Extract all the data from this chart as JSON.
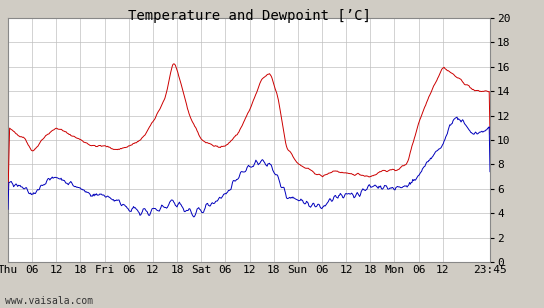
{
  "title": "Temperature and Dewpoint [’C]",
  "watermark": "www.vaisala.com",
  "ylim": [
    0,
    20
  ],
  "yticks": [
    0,
    2,
    4,
    6,
    8,
    10,
    12,
    14,
    16,
    18,
    20
  ],
  "background_color": "#d0ccc4",
  "plot_bg_color": "#ffffff",
  "grid_color": "#c0c0c0",
  "temp_color": "#cc0000",
  "dew_color": "#0000bb",
  "title_fontsize": 10,
  "tick_fontsize": 8,
  "watermark_fontsize": 7,
  "xtick_labels": [
    "Thu",
    "06",
    "12",
    "18",
    "Fri",
    "06",
    "12",
    "18",
    "Sat",
    "06",
    "12",
    "18",
    "Sun",
    "06",
    "12",
    "18",
    "Mon",
    "06",
    "12",
    "23:45"
  ],
  "xtick_positions": [
    0,
    6,
    12,
    18,
    24,
    30,
    36,
    42,
    48,
    54,
    60,
    66,
    72,
    78,
    84,
    90,
    96,
    102,
    108,
    119.75
  ],
  "xlim": [
    0,
    119.75
  ]
}
